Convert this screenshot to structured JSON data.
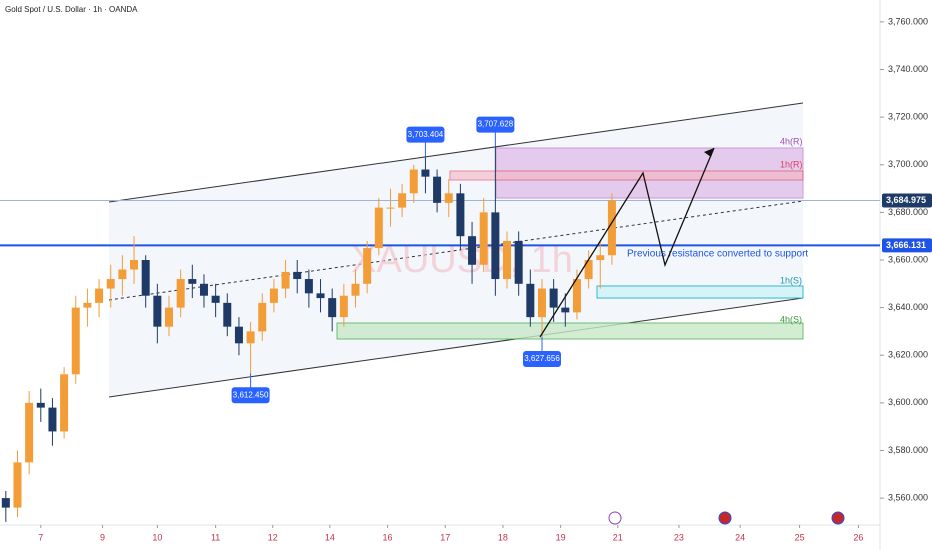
{
  "chart_data": {
    "type": "candlestick",
    "title": "Gold Spot / U.S. Dollar · 1h · OANDA",
    "watermark": "XAUUSD, 1h",
    "note": "Previous resistance converted to support",
    "zones": [
      "4h(R)",
      "1h(R)",
      "1h(S)",
      "4h(S)"
    ],
    "up_color": "#f29d38",
    "down_color": "#1f3a66",
    "x": [
      -0.6,
      -0.4,
      -0.2,
      0.0,
      0.2,
      0.4,
      0.6,
      0.8,
      1.0,
      1.2,
      1.4,
      1.6,
      1.8,
      2.0,
      2.2,
      2.4,
      2.6,
      2.8,
      3.0,
      3.2,
      3.4,
      3.6,
      3.8,
      4.0,
      4.2,
      4.4,
      4.6,
      4.8,
      5.0,
      5.2,
      5.4,
      5.6,
      5.8,
      6.0,
      6.2,
      6.4,
      6.6,
      6.8,
      7.0,
      7.2,
      7.4,
      7.6,
      7.8,
      8.0,
      8.2,
      8.4,
      8.6,
      8.8,
      9.0,
      9.2,
      9.4,
      9.6,
      9.8
    ],
    "ohlc": [
      [
        3560,
        3563,
        3550,
        3556
      ],
      [
        3556,
        3580,
        3552,
        3575
      ],
      [
        3575,
        3605,
        3570,
        3600
      ],
      [
        3600,
        3606,
        3592,
        3598
      ],
      [
        3598,
        3602,
        3582,
        3588
      ],
      [
        3588,
        3615,
        3585,
        3612
      ],
      [
        3612,
        3645,
        3608,
        3640
      ],
      [
        3640,
        3648,
        3632,
        3642
      ],
      [
        3642,
        3652,
        3636,
        3648
      ],
      [
        3648,
        3658,
        3640,
        3652
      ],
      [
        3652,
        3662,
        3645,
        3656
      ],
      [
        3656,
        3670,
        3650,
        3660
      ],
      [
        3660,
        3662,
        3640,
        3645
      ],
      [
        3645,
        3650,
        3625,
        3632
      ],
      [
        3632,
        3645,
        3628,
        3640
      ],
      [
        3640,
        3656,
        3636,
        3652
      ],
      [
        3652,
        3658,
        3644,
        3650
      ],
      [
        3650,
        3654,
        3640,
        3645
      ],
      [
        3645,
        3650,
        3636,
        3642
      ],
      [
        3642,
        3646,
        3628,
        3632
      ],
      [
        3632,
        3636,
        3620,
        3625
      ],
      [
        3625,
        3634,
        3612.45,
        3630
      ],
      [
        3630,
        3646,
        3626,
        3642
      ],
      [
        3642,
        3652,
        3638,
        3648
      ],
      [
        3648,
        3660,
        3644,
        3655
      ],
      [
        3655,
        3660,
        3646,
        3652
      ],
      [
        3652,
        3656,
        3640,
        3646
      ],
      [
        3646,
        3652,
        3638,
        3644
      ],
      [
        3644,
        3648,
        3630,
        3636
      ],
      [
        3636,
        3650,
        3632,
        3645
      ],
      [
        3645,
        3656,
        3640,
        3650
      ],
      [
        3650,
        3668,
        3646,
        3665
      ],
      [
        3665,
        3686,
        3662,
        3682
      ],
      [
        3682,
        3690,
        3674,
        3682
      ],
      [
        3682,
        3692,
        3678,
        3688
      ],
      [
        3688,
        3700,
        3684,
        3698
      ],
      [
        3698,
        3703.404,
        3688,
        3695
      ],
      [
        3695,
        3698,
        3680,
        3684
      ],
      [
        3684,
        3694,
        3678,
        3688
      ],
      [
        3688,
        3692,
        3664,
        3670
      ],
      [
        3670,
        3676,
        3650,
        3658
      ],
      [
        3658,
        3686,
        3655,
        3680
      ],
      [
        3680,
        3707.628,
        3645,
        3652
      ],
      [
        3652,
        3672,
        3648,
        3668
      ],
      [
        3668,
        3672,
        3645,
        3650
      ],
      [
        3650,
        3656,
        3632,
        3636
      ],
      [
        3636,
        3652,
        3627.656,
        3648
      ],
      [
        3648,
        3652,
        3634,
        3640
      ],
      [
        3640,
        3646,
        3632,
        3638
      ],
      [
        3638,
        3656,
        3635,
        3652
      ],
      [
        3652,
        3664,
        3648,
        3660
      ],
      [
        3660,
        3668,
        3648,
        3662
      ],
      [
        3662,
        3688,
        3658,
        3685
      ]
    ],
    "annotations": [
      {
        "x": 6.6,
        "value": 3703.404,
        "label": "3,703.404"
      },
      {
        "x": 7.8,
        "value": 3707.628,
        "label": "3,707.628"
      },
      {
        "x": 3.6,
        "value": 3612.45,
        "label": "3,612.450"
      },
      {
        "x": 8.6,
        "value": 3627.656,
        "label": "3,627.656"
      }
    ],
    "price_lines": [
      {
        "value": 3684.975,
        "label": "3,684.975",
        "color": "#1f3a66"
      },
      {
        "value": 3666.131,
        "label": "3,666.131",
        "color": "#1e53e5"
      }
    ],
    "xlim": [
      -0.7,
      14.4
    ],
    "ylim": [
      3548.7,
      3769.2
    ],
    "xticks": [
      {
        "value": 0,
        "label": "7"
      },
      {
        "value": 1.06,
        "label": "9"
      },
      {
        "value": 2.0,
        "label": "10"
      },
      {
        "value": 3.0,
        "label": "11"
      },
      {
        "value": 3.98,
        "label": "12"
      },
      {
        "value": 4.96,
        "label": "14"
      },
      {
        "value": 5.95,
        "label": "16"
      },
      {
        "value": 6.94,
        "label": "17"
      },
      {
        "value": 7.93,
        "label": "18"
      },
      {
        "value": 8.92,
        "label": "19"
      },
      {
        "value": 9.9,
        "label": "21"
      },
      {
        "value": 10.95,
        "label": "23"
      },
      {
        "value": 12.0,
        "label": "24"
      },
      {
        "value": 13.02,
        "label": "25"
      },
      {
        "value": 14.03,
        "label": "26"
      }
    ],
    "yticks": [
      {
        "value": 3560,
        "label": "3,560.000"
      },
      {
        "value": 3580,
        "label": "3,580.000"
      },
      {
        "value": 3600,
        "label": "3,600.000"
      },
      {
        "value": 3620,
        "label": "3,620.000"
      },
      {
        "value": 3640,
        "label": "3,640.000"
      },
      {
        "value": 3660,
        "label": "3,660.000"
      },
      {
        "value": 3680,
        "label": "3,680.000"
      },
      {
        "value": 3700,
        "label": "3,700.000"
      },
      {
        "value": 3720,
        "label": "3,720.000"
      },
      {
        "value": 3740,
        "label": "3,740.000"
      },
      {
        "value": 3760,
        "label": "3,760.000"
      }
    ]
  }
}
